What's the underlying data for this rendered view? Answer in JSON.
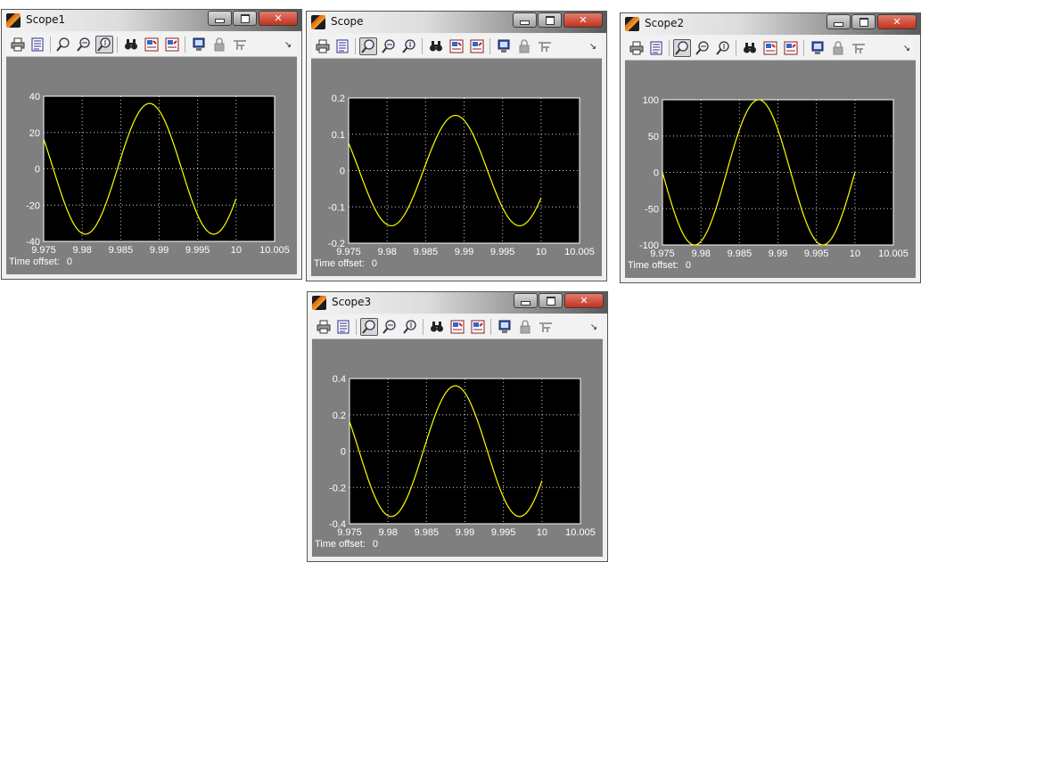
{
  "windows": [
    {
      "title": "Scope1",
      "time_offset_label": "Time offset:",
      "time_offset_value": "0",
      "chart_data": {
        "type": "line",
        "xlim": [
          9.975,
          10.005
        ],
        "ylim": [
          -40,
          40
        ],
        "xticks": [
          "9.975",
          "9.98",
          "9.985",
          "9.99",
          "9.995",
          "10",
          "10.005"
        ],
        "yticks": [
          "40",
          "20",
          "0",
          "-20",
          "-40"
        ],
        "grid": true,
        "series": [
          {
            "color": "#ffff00",
            "amplitude": 36,
            "x_start": 9.975,
            "x_end": 10.0,
            "peak_x": 9.98875,
            "period": 0.01667
          }
        ]
      }
    },
    {
      "title": "Scope",
      "time_offset_label": "Time offset:",
      "time_offset_value": "0",
      "chart_data": {
        "type": "line",
        "xlim": [
          9.975,
          10.005
        ],
        "ylim": [
          -0.2,
          0.2
        ],
        "xticks": [
          "9.975",
          "9.98",
          "9.985",
          "9.99",
          "9.995",
          "10",
          "10.005"
        ],
        "yticks": [
          "0.2",
          "0.1",
          "0",
          "-0.1",
          "-0.2"
        ],
        "grid": true,
        "series": [
          {
            "color": "#ffff00",
            "amplitude": 0.152,
            "x_start": 9.975,
            "x_end": 10.0,
            "peak_x": 9.98888,
            "period": 0.01667
          }
        ]
      }
    },
    {
      "title": "Scope2",
      "time_offset_label": "Time offset:",
      "time_offset_value": "0",
      "chart_data": {
        "type": "line",
        "xlim": [
          9.975,
          10.005
        ],
        "ylim": [
          -100,
          100
        ],
        "xticks": [
          "9.975",
          "9.98",
          "9.985",
          "9.99",
          "9.995",
          "10",
          "10.005"
        ],
        "yticks": [
          "100",
          "50",
          "0",
          "-50",
          "-100"
        ],
        "grid": true,
        "series": [
          {
            "color": "#ffff00",
            "amplitude": 100,
            "x_start": 9.975,
            "x_end": 10.0,
            "peak_x": 9.9875,
            "period": 0.01667
          }
        ]
      }
    },
    {
      "title": "Scope3",
      "time_offset_label": "Time offset:",
      "time_offset_value": "0",
      "chart_data": {
        "type": "line",
        "xlim": [
          9.975,
          10.005
        ],
        "ylim": [
          -0.4,
          0.4
        ],
        "xticks": [
          "9.975",
          "9.98",
          "9.985",
          "9.99",
          "9.995",
          "10",
          "10.005"
        ],
        "yticks": [
          "0.4",
          "0.2",
          "0",
          "-0.2",
          "-0.4"
        ],
        "grid": true,
        "series": [
          {
            "color": "#ffff00",
            "amplitude": 0.36,
            "x_start": 9.975,
            "x_end": 10.0,
            "peak_x": 9.98875,
            "period": 0.01667
          }
        ]
      }
    }
  ],
  "toolbar_icons": [
    "print-icon",
    "parameters-icon",
    "zoom-icon",
    "zoom-x-icon",
    "zoom-y-icon",
    "autoscale-icon",
    "save-axes-icon",
    "restore-axes-icon",
    "floating-scope-icon",
    "lock-axes-icon",
    "signal-selector-icon",
    "toolbar-menu-arrow-icon"
  ]
}
